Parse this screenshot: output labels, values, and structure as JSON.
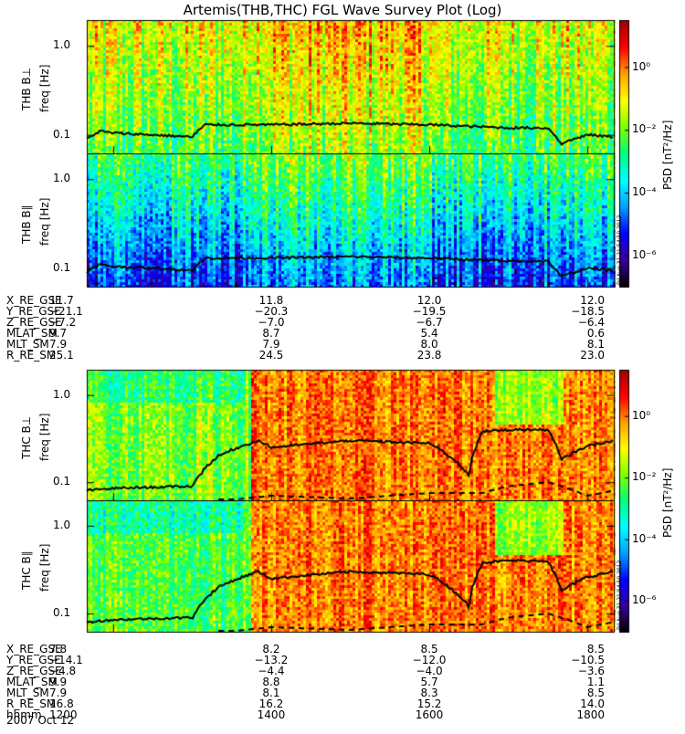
{
  "chart_data": {
    "type": "heatmap",
    "title": "Artemis(THB,THC) FGL Wave Survey Plot (Log)",
    "date": "2007 Oct 12",
    "xlim_hhmm": [
      1140,
      1820
    ],
    "freq_ticks": [
      "1.0",
      "0.1"
    ],
    "freq_tick_values": [
      1.0,
      0.1
    ],
    "freq_axis": "freq [Hz]",
    "colorbar": {
      "label": "PSD [nT²/Hz]",
      "ticks": [
        "10⁰",
        "10⁻²",
        "10⁻⁴",
        "10⁻⁶"
      ],
      "tick_exponents": [
        0,
        -2,
        -4,
        -6
      ],
      "range_log": [
        -7,
        1.5
      ],
      "colors": [
        "#000000",
        "#3a00a0",
        "#0000ff",
        "#00a0ff",
        "#00ffff",
        "#00ff80",
        "#80ff00",
        "#ffff00",
        "#ffa000",
        "#ff0000",
        "#a00000"
      ]
    },
    "stamp": "Fri Aug 31 21:54:50 2012",
    "panels": [
      {
        "label": "THB B⊥",
        "kind": "perp",
        "probe": "THB"
      },
      {
        "label": "THB B∥",
        "kind": "par",
        "probe": "THB"
      },
      {
        "label": "THC B⊥",
        "kind": "perp",
        "probe": "THC"
      },
      {
        "label": "THC B∥",
        "kind": "par",
        "probe": "THC"
      }
    ],
    "ephemeris": [
      {
        "probe": "THB",
        "rows": [
          {
            "name": "X_RE_GSE",
            "values": [
              "11.7",
              "11.8",
              "12.0",
              "12.0"
            ]
          },
          {
            "name": "Y_RE_GSE",
            "values": [
              "−21.1",
              "−20.3",
              "−19.5",
              "−18.5"
            ]
          },
          {
            "name": "Z_RE_GSE",
            "values": [
              "−7.2",
              "−7.0",
              "−6.7",
              "−6.4"
            ]
          },
          {
            "name": "MLAT_SM",
            "values": [
              "9.7",
              "8.7",
              "5.4",
              "0.6"
            ]
          },
          {
            "name": "MLT_SM",
            "values": [
              "7.9",
              "7.9",
              "8.0",
              "8.1"
            ]
          },
          {
            "name": "R_RE_SM",
            "values": [
              "25.1",
              "24.5",
              "23.8",
              "23.0"
            ]
          }
        ]
      },
      {
        "probe": "THC",
        "rows": [
          {
            "name": "X_RE_GSE",
            "values": [
              "7.8",
              "8.2",
              "8.5",
              "8.5"
            ]
          },
          {
            "name": "Y_RE_GSE",
            "values": [
              "−14.1",
              "−13.2",
              "−12.0",
              "−10.5"
            ]
          },
          {
            "name": "Z_RE_GSE",
            "values": [
              "−4.8",
              "−4.4",
              "−4.0",
              "−3.6"
            ]
          },
          {
            "name": "MLAT_SM",
            "values": [
              "9.9",
              "8.8",
              "5.7",
              "1.1"
            ]
          },
          {
            "name": "MLT_SM",
            "values": [
              "7.9",
              "8.1",
              "8.3",
              "8.5"
            ]
          },
          {
            "name": "R_RE_SM",
            "values": [
              "16.8",
              "16.2",
              "15.2",
              "14.0"
            ]
          },
          {
            "name": "hhmm",
            "values": [
              "1200",
              "1400",
              "1600",
              "1800"
            ]
          }
        ]
      }
    ],
    "tick_times_hhmm": [
      1200,
      1400,
      1600,
      1800
    ],
    "thb_ion_cyclotron_hz": {
      "t": [
        1140,
        1150,
        1200,
        1300,
        1310,
        1400,
        1500,
        1600,
        1700,
        1730,
        1740,
        1800,
        1820
      ],
      "f": [
        0.09,
        0.11,
        0.105,
        0.095,
        0.13,
        0.13,
        0.135,
        0.13,
        0.12,
        0.12,
        0.08,
        0.1,
        0.095
      ]
    },
    "thc_ion_cyclotron_hz": {
      "t": [
        1140,
        1200,
        1300,
        1320,
        1350,
        1400,
        1500,
        1600,
        1630,
        1640,
        1700,
        1730,
        1740,
        1800,
        1820
      ],
      "f": [
        0.08,
        0.085,
        0.09,
        0.2,
        0.3,
        0.25,
        0.3,
        0.28,
        0.12,
        0.38,
        0.4,
        0.4,
        0.18,
        0.26,
        0.3
      ]
    },
    "thc_dashed_hz": {
      "t": [
        1320,
        1400,
        1500,
        1600,
        1640,
        1700,
        1730,
        1800,
        1820
      ],
      "f": [
        0.06,
        0.07,
        0.065,
        0.075,
        0.075,
        0.09,
        0.1,
        0.07,
        0.08
      ]
    }
  }
}
